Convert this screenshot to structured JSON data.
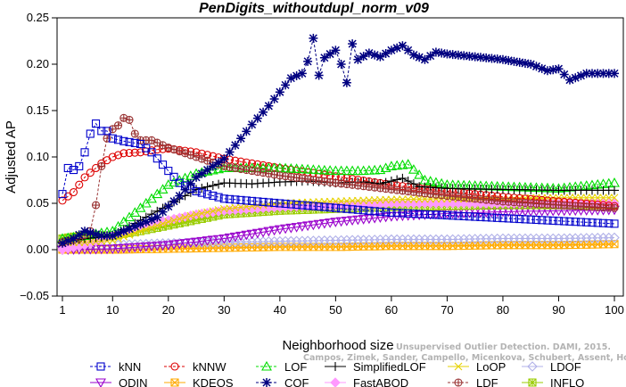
{
  "chart_data": {
    "type": "line",
    "title": "PenDigits_withoutdupl_norm_v09",
    "xlabel": "Neighborhood size",
    "ylabel": "Adjusted AP",
    "xlim": [
      1,
      100
    ],
    "ylim": [
      -0.05,
      0.25
    ],
    "xticks": [
      1,
      10,
      20,
      30,
      40,
      50,
      60,
      70,
      80,
      90,
      100
    ],
    "yticks": [
      -0.05,
      0.0,
      0.05,
      0.1,
      0.15,
      0.2,
      0.25
    ],
    "ytick_labels": [
      "−0.05",
      "0.00",
      "0.05",
      "0.10",
      "0.15",
      "0.20",
      "0.25"
    ],
    "grid": false,
    "legend_position": "bottom",
    "watermark": [
      "Unsupervised Outlier Detection. DAMI, 2015.",
      "Campos, Zimek, Sander, Campello, Micenkova, Schubert, Assent, Houle"
    ],
    "series": [
      {
        "name": "kNN",
        "color": "#0000cc",
        "marker": "square",
        "dashed": true,
        "anchors": [
          [
            1,
            0.06
          ],
          [
            2,
            0.088
          ],
          [
            3,
            0.086
          ],
          [
            4,
            0.09
          ],
          [
            5,
            0.105
          ],
          [
            6,
            0.125
          ],
          [
            7,
            0.136
          ],
          [
            8,
            0.128
          ],
          [
            9,
            0.128
          ],
          [
            10,
            0.12
          ],
          [
            12,
            0.117
          ],
          [
            15,
            0.114
          ],
          [
            17,
            0.105
          ],
          [
            20,
            0.085
          ],
          [
            22,
            0.072
          ],
          [
            25,
            0.063
          ],
          [
            30,
            0.055
          ],
          [
            40,
            0.05
          ],
          [
            50,
            0.045
          ],
          [
            60,
            0.04
          ],
          [
            70,
            0.037
          ],
          [
            80,
            0.034
          ],
          [
            90,
            0.031
          ],
          [
            100,
            0.028
          ]
        ]
      },
      {
        "name": "kNNW",
        "color": "#dd0000",
        "marker": "circle",
        "dashed": true,
        "anchors": [
          [
            1,
            0.053
          ],
          [
            3,
            0.062
          ],
          [
            5,
            0.078
          ],
          [
            8,
            0.093
          ],
          [
            10,
            0.1
          ],
          [
            12,
            0.104
          ],
          [
            15,
            0.105
          ],
          [
            18,
            0.108
          ],
          [
            20,
            0.109
          ],
          [
            25,
            0.105
          ],
          [
            30,
            0.098
          ],
          [
            40,
            0.088
          ],
          [
            50,
            0.079
          ],
          [
            60,
            0.07
          ],
          [
            70,
            0.063
          ],
          [
            80,
            0.057
          ],
          [
            90,
            0.052
          ],
          [
            100,
            0.047
          ]
        ]
      },
      {
        "name": "LOF",
        "color": "#00dd00",
        "marker": "triangle-up",
        "dashed": true,
        "anchors": [
          [
            1,
            0.012
          ],
          [
            5,
            0.015
          ],
          [
            10,
            0.02
          ],
          [
            15,
            0.045
          ],
          [
            20,
            0.07
          ],
          [
            25,
            0.082
          ],
          [
            30,
            0.088
          ],
          [
            40,
            0.088
          ],
          [
            50,
            0.085
          ],
          [
            55,
            0.085
          ],
          [
            58,
            0.086
          ],
          [
            60,
            0.09
          ],
          [
            63,
            0.092
          ],
          [
            66,
            0.075
          ],
          [
            70,
            0.07
          ],
          [
            80,
            0.068
          ],
          [
            90,
            0.066
          ],
          [
            100,
            0.072
          ]
        ]
      },
      {
        "name": "SimplifiedLOF",
        "color": "#000000",
        "marker": "plus",
        "dashed": false,
        "anchors": [
          [
            1,
            0.008
          ],
          [
            5,
            0.012
          ],
          [
            10,
            0.015
          ],
          [
            13,
            0.025
          ],
          [
            16,
            0.035
          ],
          [
            20,
            0.048
          ],
          [
            25,
            0.065
          ],
          [
            30,
            0.072
          ],
          [
            35,
            0.071
          ],
          [
            40,
            0.073
          ],
          [
            45,
            0.074
          ],
          [
            50,
            0.072
          ],
          [
            55,
            0.073
          ],
          [
            58,
            0.071
          ],
          [
            62,
            0.077
          ],
          [
            65,
            0.068
          ],
          [
            70,
            0.066
          ],
          [
            80,
            0.065
          ],
          [
            90,
            0.064
          ],
          [
            100,
            0.064
          ]
        ]
      },
      {
        "name": "LoOP",
        "color": "#e6d200",
        "marker": "cross",
        "dashed": false,
        "anchors": [
          [
            1,
            0.008
          ],
          [
            5,
            0.008
          ],
          [
            10,
            0.01
          ],
          [
            15,
            0.02
          ],
          [
            20,
            0.03
          ],
          [
            25,
            0.038
          ],
          [
            30,
            0.044
          ],
          [
            40,
            0.05
          ],
          [
            50,
            0.052
          ],
          [
            60,
            0.054
          ],
          [
            70,
            0.055
          ],
          [
            80,
            0.055
          ],
          [
            90,
            0.056
          ],
          [
            100,
            0.056
          ]
        ]
      },
      {
        "name": "LDOF",
        "color": "#b0b0e8",
        "marker": "diamond",
        "dashed": false,
        "anchors": [
          [
            1,
            0.004
          ],
          [
            10,
            0.005
          ],
          [
            20,
            0.007
          ],
          [
            30,
            0.008
          ],
          [
            40,
            0.009
          ],
          [
            50,
            0.01
          ],
          [
            60,
            0.011
          ],
          [
            70,
            0.011
          ],
          [
            80,
            0.012
          ],
          [
            90,
            0.012
          ],
          [
            100,
            0.013
          ]
        ]
      },
      {
        "name": "ODIN",
        "color": "#9900cc",
        "marker": "triangle-down",
        "dashed": false,
        "anchors": [
          [
            1,
            0.0
          ],
          [
            10,
            0.001
          ],
          [
            20,
            0.005
          ],
          [
            30,
            0.012
          ],
          [
            40,
            0.022
          ],
          [
            50,
            0.03
          ],
          [
            60,
            0.036
          ],
          [
            70,
            0.039
          ],
          [
            80,
            0.041
          ],
          [
            90,
            0.042
          ],
          [
            100,
            0.043
          ]
        ]
      },
      {
        "name": "KDEOS",
        "color": "#ffaa00",
        "marker": "square-x",
        "dashed": false,
        "anchors": [
          [
            1,
            0.0
          ],
          [
            10,
            0.0
          ],
          [
            20,
            0.001
          ],
          [
            30,
            0.002
          ],
          [
            40,
            0.003
          ],
          [
            50,
            0.003
          ],
          [
            60,
            0.004
          ],
          [
            70,
            0.004
          ],
          [
            80,
            0.005
          ],
          [
            90,
            0.005
          ],
          [
            100,
            0.006
          ]
        ]
      },
      {
        "name": "COF",
        "color": "#000080",
        "marker": "asterisk",
        "dashed": true,
        "anchors": [
          [
            1,
            0.007
          ],
          [
            3,
            0.012
          ],
          [
            5,
            0.02
          ],
          [
            8,
            0.015
          ],
          [
            10,
            0.015
          ],
          [
            14,
            0.025
          ],
          [
            18,
            0.035
          ],
          [
            22,
            0.058
          ],
          [
            25,
            0.078
          ],
          [
            30,
            0.098
          ],
          [
            33,
            0.12
          ],
          [
            35,
            0.135
          ],
          [
            38,
            0.155
          ],
          [
            40,
            0.17
          ],
          [
            42,
            0.185
          ],
          [
            44,
            0.19
          ],
          [
            45,
            0.203
          ],
          [
            46,
            0.228
          ],
          [
            47,
            0.188
          ],
          [
            48,
            0.207
          ],
          [
            50,
            0.215
          ],
          [
            51,
            0.2
          ],
          [
            52,
            0.18
          ],
          [
            53,
            0.222
          ],
          [
            54,
            0.205
          ],
          [
            56,
            0.212
          ],
          [
            58,
            0.208
          ],
          [
            60,
            0.215
          ],
          [
            62,
            0.22
          ],
          [
            64,
            0.21
          ],
          [
            66,
            0.205
          ],
          [
            68,
            0.213
          ],
          [
            70,
            0.211
          ],
          [
            75,
            0.208
          ],
          [
            80,
            0.205
          ],
          [
            85,
            0.2
          ],
          [
            88,
            0.193
          ],
          [
            90,
            0.195
          ],
          [
            92,
            0.183
          ],
          [
            95,
            0.19
          ],
          [
            100,
            0.19
          ]
        ]
      },
      {
        "name": "FastABOD",
        "color": "#ff99ff",
        "marker": "diamond-filled",
        "dashed": false,
        "anchors": [
          [
            1,
            0.0
          ],
          [
            5,
            0.005
          ],
          [
            10,
            0.015
          ],
          [
            15,
            0.025
          ],
          [
            20,
            0.032
          ],
          [
            25,
            0.038
          ],
          [
            30,
            0.042
          ],
          [
            40,
            0.046
          ],
          [
            50,
            0.048
          ],
          [
            60,
            0.05
          ],
          [
            70,
            0.05
          ],
          [
            80,
            0.05
          ],
          [
            90,
            0.05
          ],
          [
            100,
            0.05
          ]
        ]
      },
      {
        "name": "LDF",
        "color": "#993333",
        "marker": "circle-plus",
        "dashed": true,
        "anchors": [
          [
            1,
            0.008
          ],
          [
            4,
            0.012
          ],
          [
            6,
            0.02
          ],
          [
            7,
            0.048
          ],
          [
            8,
            0.09
          ],
          [
            9,
            0.12
          ],
          [
            10,
            0.13
          ],
          [
            11,
            0.134
          ],
          [
            12,
            0.142
          ],
          [
            13,
            0.14
          ],
          [
            14,
            0.125
          ],
          [
            15,
            0.118
          ],
          [
            17,
            0.118
          ],
          [
            20,
            0.11
          ],
          [
            25,
            0.1
          ],
          [
            30,
            0.09
          ],
          [
            40,
            0.08
          ],
          [
            50,
            0.072
          ],
          [
            60,
            0.065
          ],
          [
            70,
            0.058
          ],
          [
            80,
            0.052
          ],
          [
            90,
            0.048
          ],
          [
            100,
            0.045
          ]
        ]
      },
      {
        "name": "INFLO",
        "color": "#99cc00",
        "marker": "star-square",
        "dashed": false,
        "anchors": [
          [
            1,
            0.012
          ],
          [
            5,
            0.016
          ],
          [
            10,
            0.015
          ],
          [
            15,
            0.02
          ],
          [
            20,
            0.026
          ],
          [
            25,
            0.032
          ],
          [
            30,
            0.038
          ],
          [
            40,
            0.042
          ],
          [
            50,
            0.044
          ],
          [
            60,
            0.046
          ],
          [
            70,
            0.047
          ],
          [
            80,
            0.048
          ],
          [
            90,
            0.048
          ],
          [
            100,
            0.048
          ]
        ]
      }
    ]
  }
}
